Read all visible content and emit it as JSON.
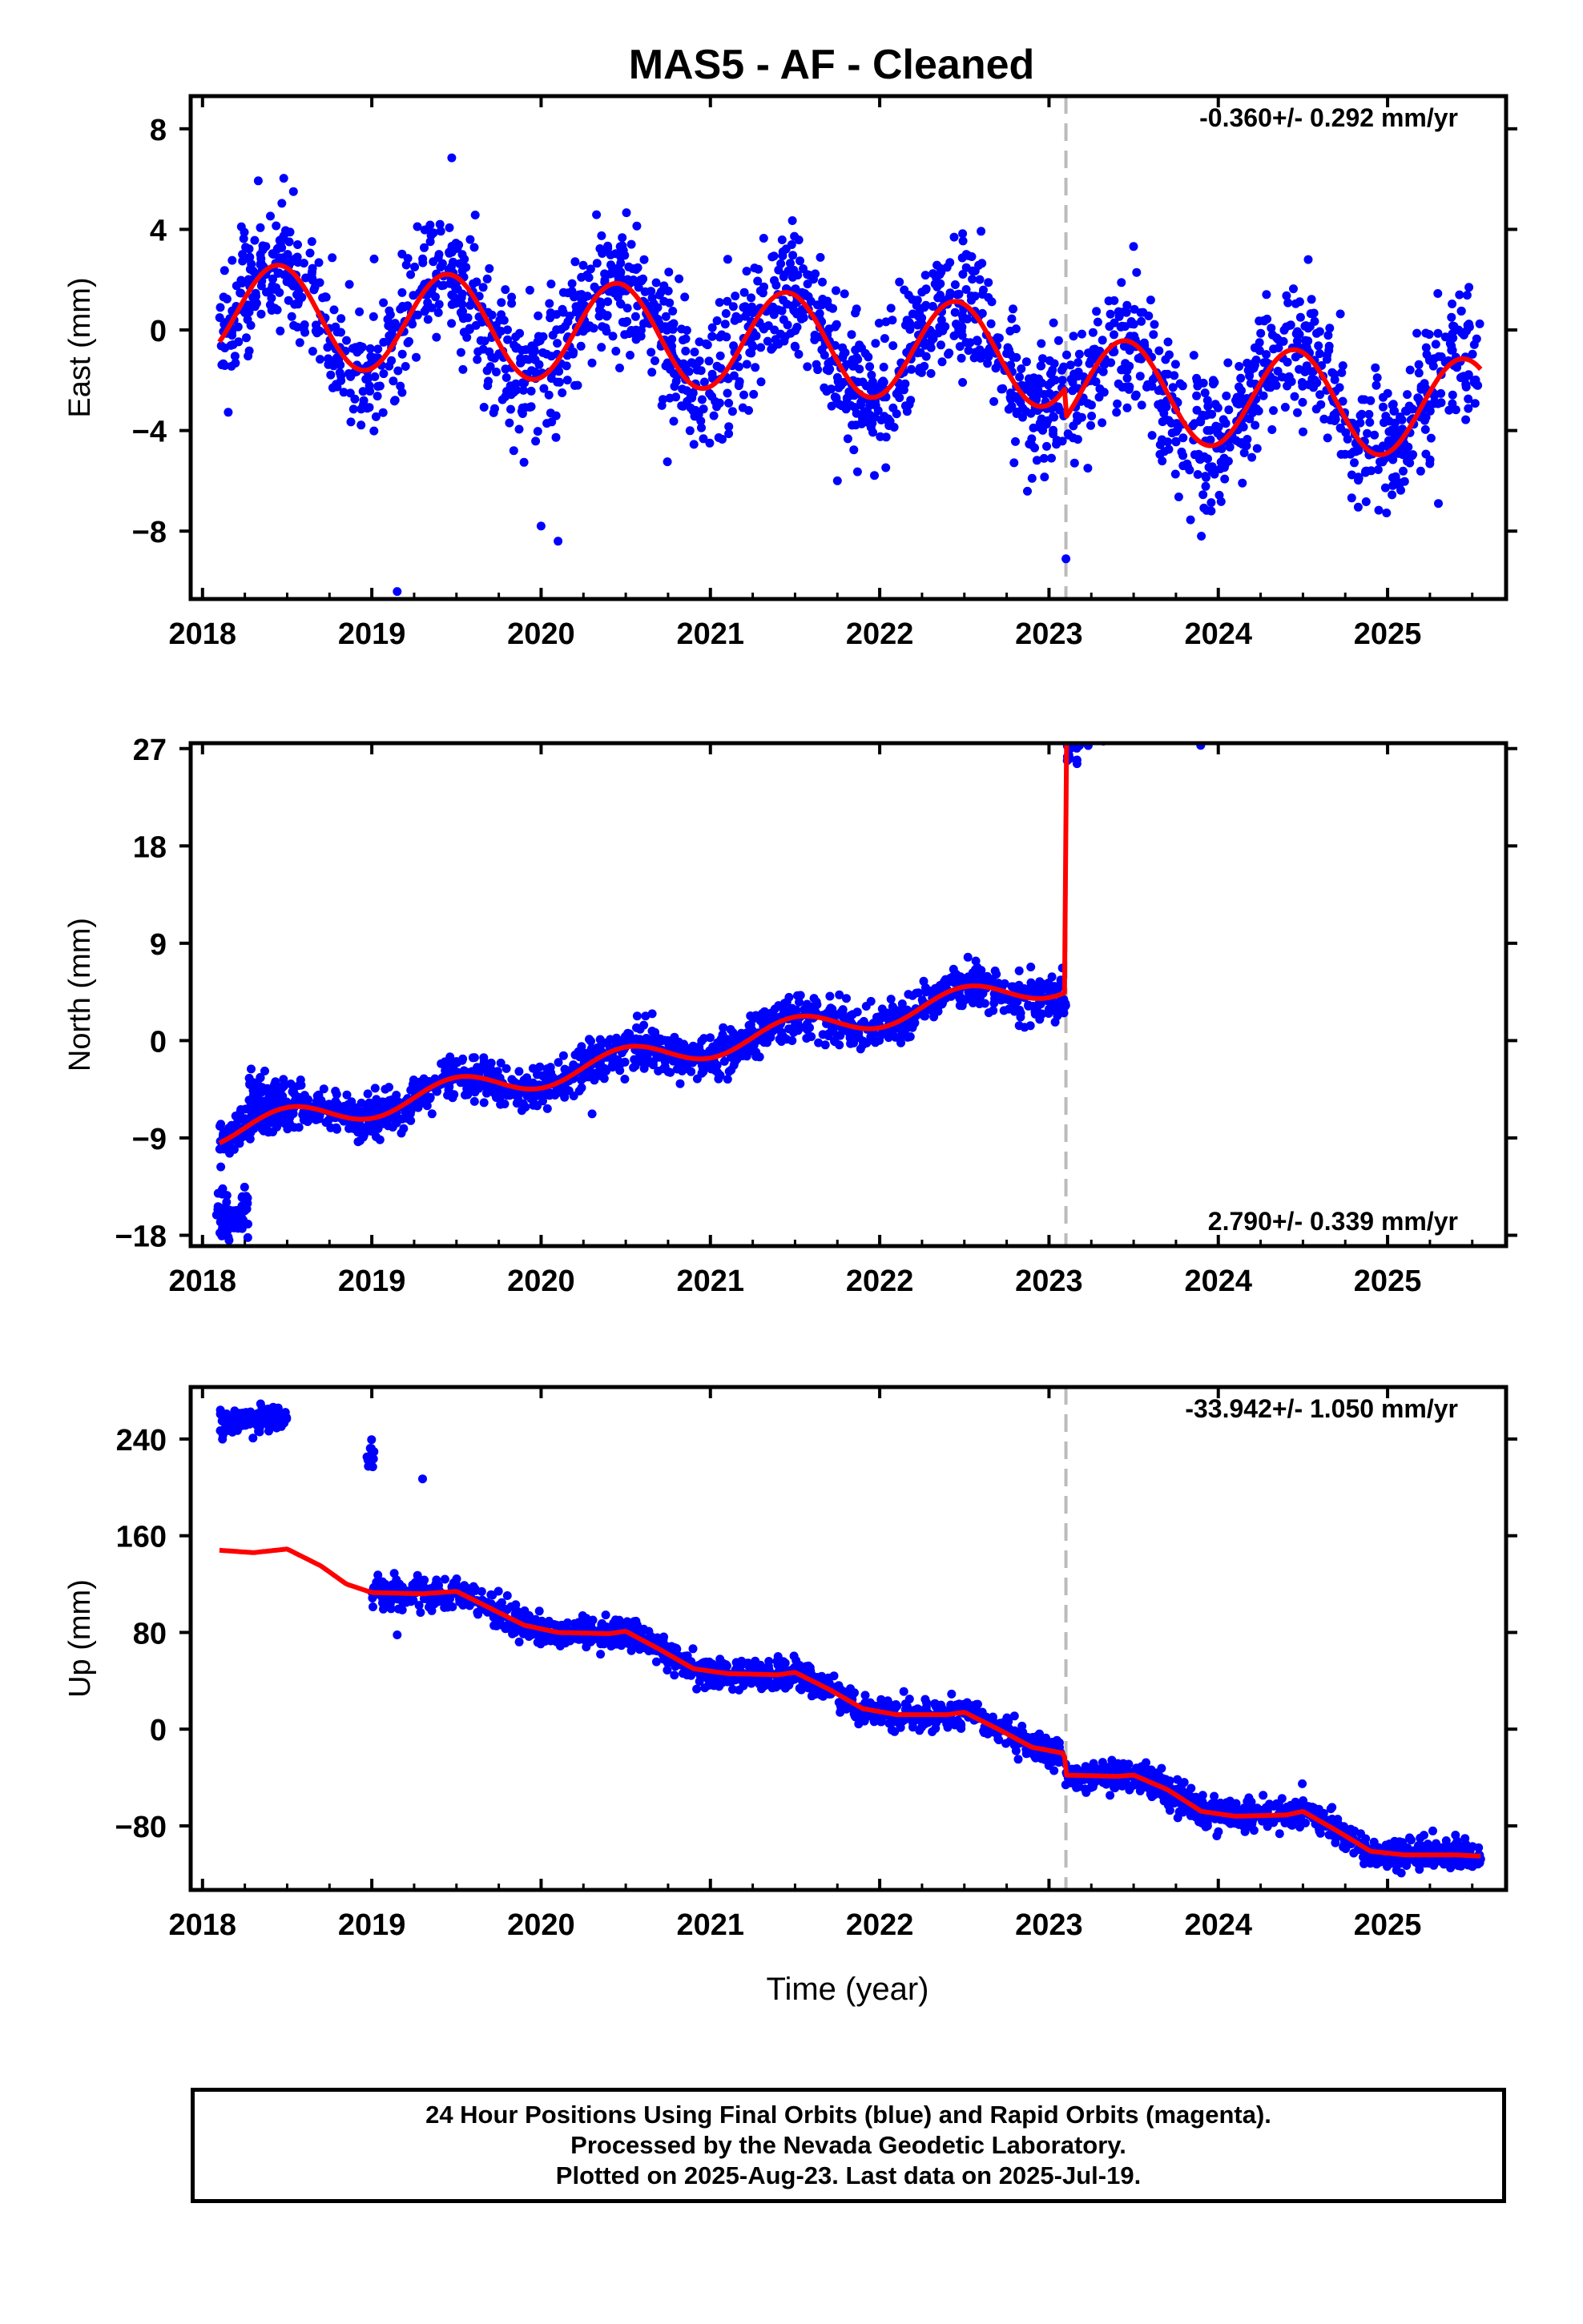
{
  "title": "MAS5  - AF - Cleaned",
  "xlabel": "Time (year)",
  "x_ticks": [
    "2018",
    "2019",
    "2020",
    "2021",
    "2022",
    "2023",
    "2024",
    "2025"
  ],
  "footer": {
    "line1": "24 Hour Positions Using Final Orbits (blue) and Rapid Orbits (magenta).",
    "line2": "Processed by the Nevada Geodetic Laboratory.",
    "line3": "Plotted on 2025-Aug-23. Last data on 2025-Jul-19."
  },
  "colors": {
    "data": "#0000ff",
    "model": "#ff0000",
    "break": "#bbbbbb",
    "frame": "#000000"
  },
  "chart_data": [
    {
      "type": "scatter",
      "name": "east",
      "ylabel": "East (mm)",
      "ylim": [
        -10.7,
        9.3
      ],
      "xlim": [
        2017.93,
        2025.7
      ],
      "y_ticks": [
        "8",
        "4",
        "0",
        "−4",
        "−8"
      ],
      "y_tick_values": [
        8,
        4,
        0,
        -4,
        -8
      ],
      "rate_label": "-0.360+/- 0.292 mm/yr",
      "rate_position": "top-right",
      "equipment_change": 2023.1,
      "x_ticks": [
        2018,
        2019,
        2020,
        2021,
        2022,
        2023,
        2024,
        2025
      ],
      "data_range": [
        2018.1,
        2025.55
      ],
      "model": {
        "segments": [
          {
            "x0": 2018.1,
            "x1": 2023.1,
            "offset": 0.7,
            "rate": -0.36
          },
          {
            "x0": 2023.1,
            "x1": 2025.55,
            "offset": -0.5,
            "rate": -0.36
          }
        ],
        "annual_amp": 2.0,
        "annual_phase_year": 0.45
      },
      "scatter": {
        "noise": 1.3,
        "count": 2200
      },
      "outliers": [
        [
          2019.15,
          -10.4
        ],
        [
          2020.1,
          -8.4
        ],
        [
          2020.0,
          -7.8
        ],
        [
          2023.1,
          -9.1
        ],
        [
          2023.9,
          -8.2
        ],
        [
          2025.3,
          -6.9
        ],
        [
          2021.75,
          -6.0
        ],
        [
          2022.9,
          -5.9
        ]
      ]
    },
    {
      "type": "scatter",
      "name": "north",
      "ylabel": "North (mm)",
      "ylim": [
        -19,
        27.5
      ],
      "xlim": [
        2017.93,
        2025.7
      ],
      "y_ticks": [
        "27",
        "18",
        "9",
        "0",
        "−9",
        "−18"
      ],
      "y_tick_values": [
        27,
        18,
        9,
        0,
        -9,
        -18
      ],
      "rate_label": "2.790+/- 0.339 mm/yr",
      "rate_position": "bottom-right",
      "equipment_change": 2023.1,
      "x_ticks": [
        2018,
        2019,
        2020,
        2021,
        2022,
        2023,
        2024,
        2025
      ],
      "data_range": [
        2018.1,
        2025.55
      ],
      "model": {
        "segments": [
          {
            "x0": 2018.1,
            "x1": 2023.1,
            "offset": -8.5,
            "rate": 2.79
          },
          {
            "x0": 2023.1,
            "x1": 2025.55,
            "offset": 14.8,
            "rate": 2.79
          }
        ],
        "annual_amp": 1.2,
        "annual_phase_year": 0.5
      },
      "scatter": {
        "noise": 1.0,
        "count": 2200
      },
      "clusters": [
        {
          "x0": 2018.08,
          "x1": 2018.27,
          "y": -16.2,
          "spread": 1.2,
          "count": 70
        },
        {
          "x0": 2018.27,
          "x1": 2018.5,
          "y": -5.5,
          "spread": 1.4,
          "count": 70
        }
      ]
    },
    {
      "type": "scatter",
      "name": "up",
      "ylabel": "Up (mm)",
      "ylim": [
        -133,
        283
      ],
      "xlim": [
        2017.93,
        2025.7
      ],
      "y_ticks": [
        "240",
        "160",
        "80",
        "0",
        "−80"
      ],
      "y_tick_values": [
        240,
        160,
        80,
        0,
        -80
      ],
      "rate_label": "-33.942+/- 1.050 mm/yr",
      "rate_position": "top-right",
      "equipment_change": 2023.1,
      "x_ticks": [
        2018,
        2019,
        2020,
        2021,
        2022,
        2023,
        2024,
        2025
      ],
      "data_range": [
        2019.0,
        2025.55
      ],
      "model_points": [
        [
          2018.1,
          148
        ],
        [
          2018.3,
          146
        ],
        [
          2018.5,
          149
        ],
        [
          2018.7,
          135
        ],
        [
          2018.85,
          120
        ],
        [
          2019.0,
          113
        ],
        [
          2019.3,
          112
        ],
        [
          2019.5,
          114
        ],
        [
          2019.7,
          100
        ],
        [
          2019.9,
          86
        ],
        [
          2020.1,
          80
        ],
        [
          2020.4,
          79
        ],
        [
          2020.5,
          81
        ],
        [
          2020.7,
          66
        ],
        [
          2020.9,
          50
        ],
        [
          2021.1,
          46
        ],
        [
          2021.4,
          45
        ],
        [
          2021.5,
          47
        ],
        [
          2021.7,
          33
        ],
        [
          2021.9,
          17
        ],
        [
          2022.1,
          12
        ],
        [
          2022.4,
          12
        ],
        [
          2022.5,
          14
        ],
        [
          2022.7,
          0
        ],
        [
          2022.9,
          -15
        ],
        [
          2023.09,
          -20
        ],
        [
          2023.1,
          -38
        ],
        [
          2023.4,
          -39
        ],
        [
          2023.5,
          -38
        ],
        [
          2023.7,
          -50
        ],
        [
          2023.9,
          -68
        ],
        [
          2024.1,
          -72
        ],
        [
          2024.4,
          -71
        ],
        [
          2024.5,
          -68
        ],
        [
          2024.7,
          -84
        ],
        [
          2024.9,
          -101
        ],
        [
          2025.1,
          -104
        ],
        [
          2025.4,
          -104
        ],
        [
          2025.55,
          -105
        ]
      ],
      "scatter": {
        "noise": 6,
        "count": 2000
      },
      "clusters": [
        {
          "x0": 2018.1,
          "x1": 2018.5,
          "y": 255,
          "spread": 5,
          "count": 120
        },
        {
          "x0": 2018.97,
          "x1": 2019.02,
          "y": 222,
          "spread": 7,
          "count": 12
        }
      ],
      "outliers": [
        [
          2019.3,
          207
        ],
        [
          2019.15,
          78
        ],
        [
          2020.3,
          80
        ]
      ]
    }
  ]
}
